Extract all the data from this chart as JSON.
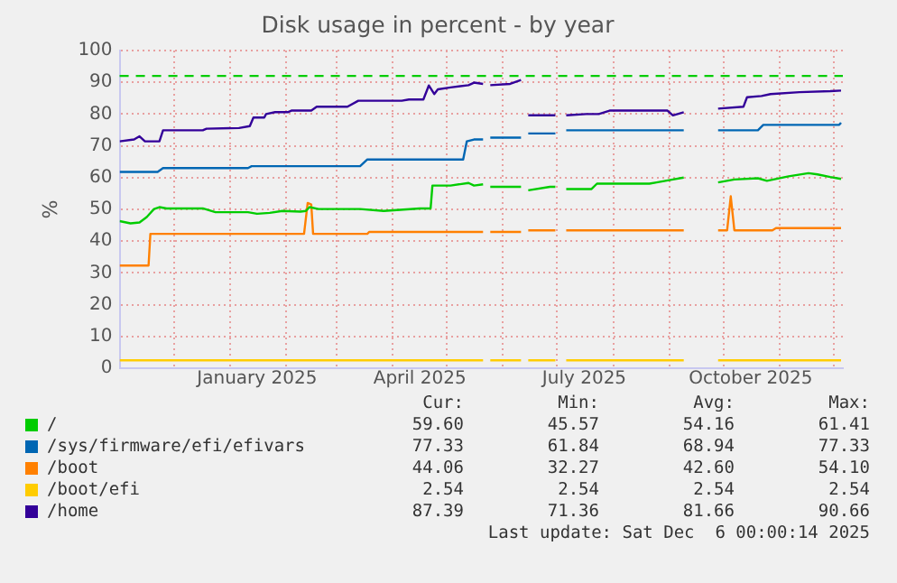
{
  "chart_data": {
    "type": "line",
    "title": "Disk usage in percent - by year",
    "ylabel": "%",
    "xlim": [
      "2024-11-01",
      "2025-12-06"
    ],
    "xticks": [
      {
        "value": "2024-12-01",
        "label": null
      },
      {
        "value": "2025-01-01",
        "label": null
      },
      {
        "value": "2025-01-16",
        "label": "January 2025"
      },
      {
        "value": "2025-02-01",
        "label": null
      },
      {
        "value": "2025-03-01",
        "label": null
      },
      {
        "value": "2025-04-01",
        "label": null
      },
      {
        "value": "2025-04-16",
        "label": "April 2025"
      },
      {
        "value": "2025-05-01",
        "label": null
      },
      {
        "value": "2025-06-01",
        "label": null
      },
      {
        "value": "2025-07-01",
        "label": null
      },
      {
        "value": "2025-07-16",
        "label": "July 2025"
      },
      {
        "value": "2025-08-01",
        "label": null
      },
      {
        "value": "2025-09-01",
        "label": null
      },
      {
        "value": "2025-10-01",
        "label": null
      },
      {
        "value": "2025-10-16",
        "label": "October 2025"
      },
      {
        "value": "2025-11-01",
        "label": null
      },
      {
        "value": "2025-12-01",
        "label": null
      }
    ],
    "ylim": [
      0,
      100
    ],
    "yticks": [
      0,
      10,
      20,
      30,
      40,
      50,
      60,
      70,
      80,
      90,
      100
    ],
    "grid": true,
    "legend": "bottom",
    "marker": "none",
    "line_style": "solid",
    "ref_lines": [
      {
        "axis": "y",
        "value": 92,
        "label": null,
        "color": "#00cc00",
        "line_style": "dashed"
      }
    ],
    "series": [
      {
        "name": "/",
        "color": "#00cc00",
        "x": [
          "2024-11-01",
          "2024-11-07",
          "2024-11-12",
          "2024-11-16",
          "2024-11-20",
          "2024-11-23",
          "2024-11-27",
          "2024-12-17",
          "2024-12-24",
          "2025-01-11",
          "2025-01-16",
          "2025-01-23",
          "2025-01-30",
          "2025-02-09",
          "2025-02-12",
          "2025-02-14",
          "2025-02-19",
          "2025-03-14",
          "2025-03-27",
          "2025-04-16",
          "2025-04-22",
          "2025-04-23",
          "2025-05-03",
          "2025-05-13",
          "2025-05-16",
          "2025-05-21",
          "2025-05-23",
          "2025-05-25",
          "2025-06-11",
          "2025-06-13",
          "2025-06-15",
          "2025-06-27",
          "2025-06-30",
          "2025-07-03",
          "2025-07-06",
          "2025-07-20",
          "2025-07-23",
          "2025-08-21",
          "2025-08-25",
          "2025-09-03",
          "2025-09-09",
          "2025-09-20",
          "2025-09-28",
          "2025-10-07",
          "2025-10-20",
          "2025-10-25",
          "2025-11-06",
          "2025-11-17",
          "2025-11-22",
          "2025-11-29",
          "2025-12-05"
        ],
        "values": [
          46.3,
          45.6,
          45.9,
          47.6,
          50.1,
          50.7,
          50.3,
          50.3,
          49.1,
          49.1,
          48.6,
          48.9,
          49.5,
          49.3,
          49.5,
          50.7,
          50.1,
          50.1,
          49.5,
          50.3,
          50.3,
          57.5,
          57.5,
          58.3,
          57.5,
          57.9,
          null,
          57.1,
          57.1,
          null,
          56,
          57.1,
          57.1,
          null,
          56.4,
          56.4,
          58.1,
          58.1,
          58.5,
          59.4,
          60,
          null,
          58.5,
          59.4,
          59.8,
          59,
          60.4,
          61.4,
          61,
          60.2,
          59.6
        ]
      },
      {
        "name": "/sys/firmware/efi/efivars",
        "color": "#0066b3",
        "x": [
          "2024-11-01",
          "2024-11-22",
          "2024-11-25",
          "2025-01-11",
          "2025-01-13",
          "2025-03-14",
          "2025-03-18",
          "2025-05-10",
          "2025-05-12",
          "2025-05-16",
          "2025-05-21",
          "2025-05-23",
          "2025-05-25",
          "2025-06-11",
          "2025-06-13",
          "2025-06-15",
          "2025-06-30",
          "2025-07-03",
          "2025-07-06",
          "2025-09-09",
          "2025-09-20",
          "2025-09-28",
          "2025-10-20",
          "2025-10-23",
          "2025-12-04",
          "2025-12-05"
        ],
        "values": [
          61.8,
          61.8,
          63,
          63,
          63.6,
          63.6,
          65.7,
          65.7,
          71.4,
          72,
          72,
          null,
          72.6,
          72.6,
          null,
          73.9,
          73.9,
          null,
          74.9,
          74.9,
          null,
          74.9,
          74.9,
          76.6,
          76.6,
          77.3
        ]
      },
      {
        "name": "/boot",
        "color": "#ff8000",
        "x": [
          "2024-11-01",
          "2024-11-17",
          "2024-11-18",
          "2025-02-11",
          "2025-02-13",
          "2025-02-15",
          "2025-02-16",
          "2025-03-18",
          "2025-03-19",
          "2025-05-21",
          "2025-05-23",
          "2025-05-25",
          "2025-06-11",
          "2025-06-13",
          "2025-06-15",
          "2025-06-30",
          "2025-07-03",
          "2025-07-06",
          "2025-09-09",
          "2025-09-20",
          "2025-09-28",
          "2025-10-03",
          "2025-10-05",
          "2025-10-07",
          "2025-10-28",
          "2025-10-30",
          "2025-12-05"
        ],
        "values": [
          32.3,
          32.3,
          42.3,
          42.3,
          52,
          51.5,
          42.3,
          42.3,
          42.9,
          42.9,
          null,
          42.9,
          42.9,
          null,
          43.4,
          43.4,
          null,
          43.4,
          43.4,
          null,
          43.4,
          43.4,
          54.1,
          43.4,
          43.4,
          44.1,
          44.1
        ]
      },
      {
        "name": "/boot/efi",
        "color": "#ffcc00",
        "x": [
          "2024-11-01",
          "2025-05-21",
          "2025-05-23",
          "2025-05-25",
          "2025-06-11",
          "2025-06-13",
          "2025-06-15",
          "2025-06-30",
          "2025-07-03",
          "2025-07-06",
          "2025-09-09",
          "2025-09-20",
          "2025-09-28",
          "2025-12-05"
        ],
        "values": [
          2.5,
          2.5,
          null,
          2.5,
          2.5,
          null,
          2.5,
          2.5,
          null,
          2.5,
          2.5,
          null,
          2.5,
          2.5
        ]
      },
      {
        "name": "/home",
        "color": "#330099",
        "x": [
          "2024-11-01",
          "2024-11-09",
          "2024-11-12",
          "2024-11-15",
          "2024-11-23",
          "2024-11-25",
          "2024-12-17",
          "2024-12-19",
          "2025-01-06",
          "2025-01-12",
          "2025-01-14",
          "2025-01-20",
          "2025-01-21",
          "2025-01-26",
          "2025-02-02",
          "2025-02-04",
          "2025-02-15",
          "2025-02-18",
          "2025-03-07",
          "2025-03-13",
          "2025-04-06",
          "2025-04-10",
          "2025-04-18",
          "2025-04-21",
          "2025-04-24",
          "2025-04-26",
          "2025-05-03",
          "2025-05-13",
          "2025-05-16",
          "2025-05-21",
          "2025-05-23",
          "2025-05-25",
          "2025-06-05",
          "2025-06-11",
          "2025-06-13",
          "2025-06-15",
          "2025-06-30",
          "2025-07-03",
          "2025-07-06",
          "2025-07-17",
          "2025-07-24",
          "2025-07-30",
          "2025-08-31",
          "2025-09-03",
          "2025-09-09",
          "2025-09-20",
          "2025-09-28",
          "2025-10-12",
          "2025-10-14",
          "2025-10-22",
          "2025-10-27",
          "2025-11-12",
          "2025-11-29",
          "2025-12-05"
        ],
        "values": [
          71.4,
          72,
          73,
          71.4,
          71.4,
          74.9,
          74.9,
          75.4,
          75.6,
          76.2,
          78.9,
          78.9,
          80,
          80.6,
          80.6,
          81.1,
          81.1,
          82.3,
          82.3,
          84.2,
          84.2,
          84.6,
          84.6,
          89,
          86.3,
          87.8,
          88.4,
          89.1,
          89.9,
          89.5,
          null,
          89.1,
          89.5,
          90.7,
          null,
          79.6,
          79.6,
          null,
          79.6,
          80,
          80,
          81.1,
          81.1,
          79.6,
          80.6,
          null,
          81.7,
          82.3,
          85.3,
          85.7,
          86.3,
          86.9,
          87.2,
          87.4
        ]
      }
    ],
    "annotations": [
      "Cur:",
      "Min:",
      "Avg:",
      "Max:",
      "59.60",
      "45.57",
      "54.16",
      "61.41",
      "77.33",
      "61.84",
      "68.94",
      "77.33",
      "44.06",
      "32.27",
      "42.60",
      "54.10",
      "2.54",
      "2.54",
      "2.54",
      "2.54",
      "87.39",
      "71.36",
      "81.66",
      "90.66",
      "Last update: Sat Dec  6 00:00:14 2025"
    ]
  }
}
